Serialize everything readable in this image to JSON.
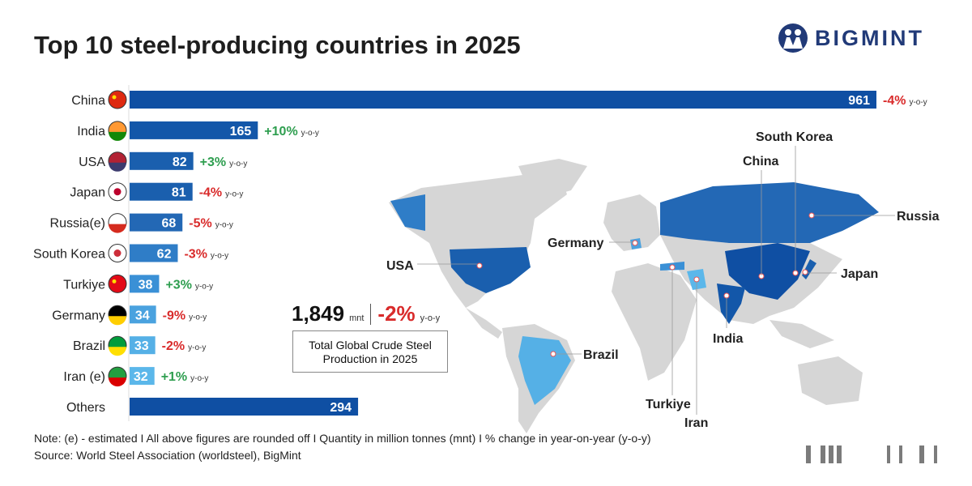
{
  "title": "Top 10 steel-producing countries in 2025",
  "brand": "BIGMINT",
  "chart_data": {
    "type": "bar",
    "orientation": "horizontal",
    "title": "Top 10 steel-producing countries in 2025",
    "unit": "mnt",
    "yoy_suffix": "y-o-y",
    "categories": [
      "China",
      "India",
      "USA",
      "Japan",
      "Russia(e)",
      "South Korea",
      "Turkiye",
      "Germany",
      "Brazil",
      "Iran (e)",
      "Others"
    ],
    "values": [
      961,
      165,
      82,
      81,
      68,
      62,
      38,
      34,
      33,
      32,
      294
    ],
    "yoy": [
      "-4%",
      "+10%",
      "+3%",
      "-4%",
      "-5%",
      "-3%",
      "+3%",
      "-9%",
      "-2%",
      "+1%",
      null
    ],
    "bar_colors": [
      "#0f4fa3",
      "#1357a9",
      "#1a5fae",
      "#1a5fae",
      "#2368b5",
      "#2f7dc7",
      "#3a90d6",
      "#4aa2df",
      "#55b0e6",
      "#5bb7ea",
      "#0f4fa3"
    ],
    "flags": [
      "china-flag",
      "india-flag",
      "usa-flag",
      "japan-flag",
      "russia-flag",
      "south-korea-flag",
      "turkiye-flag",
      "germany-flag",
      "brazil-flag",
      "iran-flag",
      null
    ]
  },
  "colors": {
    "positive": "#2e9e4f",
    "negative": "#d92b2b",
    "brand": "#213a78"
  },
  "total": {
    "value": "1,849",
    "unit": "mnt",
    "change": "-2%",
    "suffix": "y-o-y",
    "label_line1": "Total Global Crude Steel",
    "label_line2": "Production in 2025"
  },
  "map_labels": [
    "South Korea",
    "China",
    "Russia",
    "Germany",
    "USA",
    "Japan",
    "India",
    "Brazil",
    "Turkiye",
    "Iran"
  ],
  "note": "Note: (e) - estimated  I  All above figures are rounded off  I  Quantity in million tonnes (mnt)  I  % change in year-on-year (y-o-y)",
  "source": "Source: World Steel Association (worldsteel), BigMint"
}
